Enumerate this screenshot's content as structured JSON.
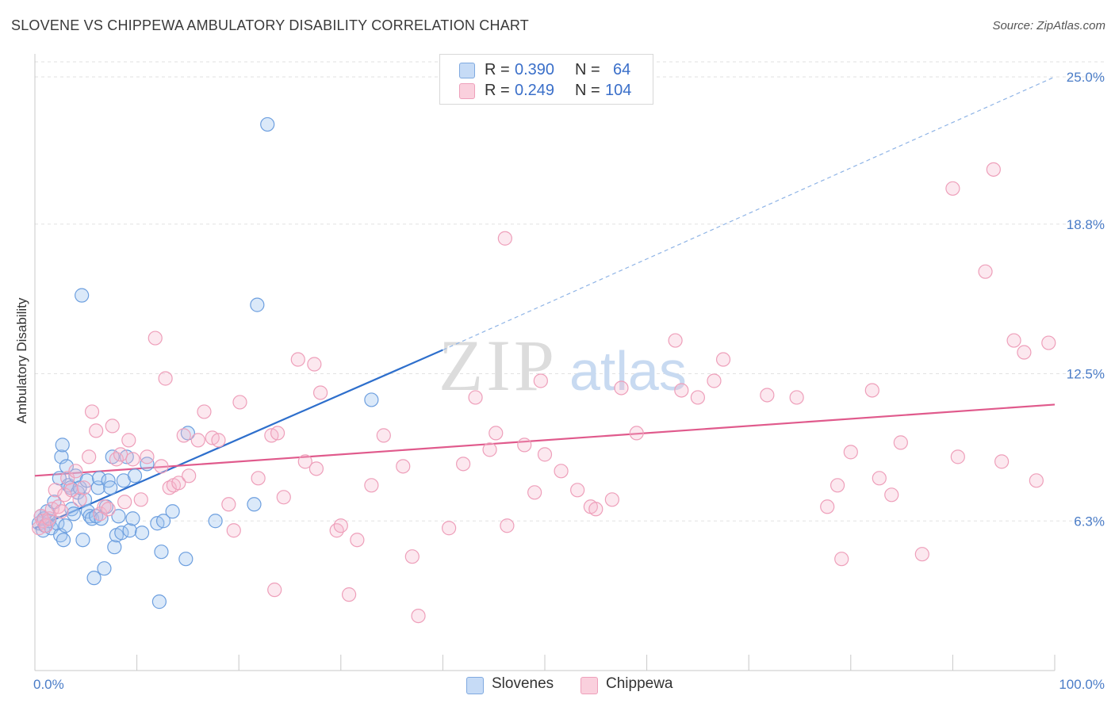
{
  "header": {
    "title": "SLOVENE VS CHIPPEWA AMBULATORY DISABILITY CORRELATION CHART",
    "source": "Source: ZipAtlas.com"
  },
  "watermark": {
    "zip": "ZIP",
    "atlas": "atlas"
  },
  "legend": {
    "r_label": "R =",
    "n_label": "N =",
    "rows": [
      {
        "r": "0.390",
        "n": "64"
      },
      {
        "r": "0.249",
        "n": "104"
      }
    ]
  },
  "chart_data": {
    "type": "scatter",
    "title": "SLOVENE VS CHIPPEWA AMBULATORY DISABILITY CORRELATION CHART",
    "xlabel": "",
    "ylabel": "Ambulatory Disability",
    "xlim": [
      0,
      100
    ],
    "ylim": [
      0,
      26
    ],
    "x_tick_labels": [
      "0.0%",
      "100.0%"
    ],
    "y_ticks": [
      6.3,
      12.5,
      18.8,
      25.0
    ],
    "y_tick_labels": [
      "6.3%",
      "12.5%",
      "18.8%",
      "25.0%"
    ],
    "grid": "horizontal-dashed",
    "legend_position": "bottom-center",
    "series": [
      {
        "name": "Slovenes",
        "color": "#8ab4e8",
        "line_color": "#2e6fcc",
        "trend": {
          "x": [
            0,
            40
          ],
          "y": [
            6.0,
            13.5
          ],
          "dashed_to": [
            100,
            25.0
          ]
        },
        "points": [
          [
            0.4,
            6.2
          ],
          [
            0.6,
            6.5
          ],
          [
            0.8,
            5.9
          ],
          [
            0.9,
            6.4
          ],
          [
            1.0,
            6.1
          ],
          [
            1.2,
            6.7
          ],
          [
            1.4,
            6.3
          ],
          [
            1.6,
            6.0
          ],
          [
            1.9,
            7.1
          ],
          [
            2.2,
            6.2
          ],
          [
            2.4,
            8.1
          ],
          [
            2.5,
            5.7
          ],
          [
            2.6,
            9.0
          ],
          [
            2.7,
            9.5
          ],
          [
            2.8,
            5.5
          ],
          [
            3.0,
            6.1
          ],
          [
            3.1,
            8.6
          ],
          [
            3.3,
            7.8
          ],
          [
            3.5,
            7.7
          ],
          [
            3.6,
            6.8
          ],
          [
            3.8,
            6.6
          ],
          [
            4.0,
            8.2
          ],
          [
            4.2,
            7.5
          ],
          [
            4.4,
            7.7
          ],
          [
            4.6,
            15.8
          ],
          [
            4.7,
            5.5
          ],
          [
            4.9,
            7.2
          ],
          [
            5.1,
            8.0
          ],
          [
            5.2,
            6.7
          ],
          [
            5.4,
            6.5
          ],
          [
            5.6,
            6.4
          ],
          [
            5.8,
            3.9
          ],
          [
            6.0,
            6.5
          ],
          [
            6.2,
            7.7
          ],
          [
            6.3,
            8.1
          ],
          [
            6.5,
            6.4
          ],
          [
            6.8,
            4.3
          ],
          [
            7.0,
            6.9
          ],
          [
            7.2,
            8.0
          ],
          [
            7.4,
            7.7
          ],
          [
            7.6,
            9.0
          ],
          [
            7.8,
            5.2
          ],
          [
            8.0,
            5.7
          ],
          [
            8.2,
            6.5
          ],
          [
            8.5,
            5.8
          ],
          [
            8.7,
            8.0
          ],
          [
            9.0,
            9.0
          ],
          [
            9.3,
            5.9
          ],
          [
            9.6,
            6.4
          ],
          [
            9.8,
            8.2
          ],
          [
            10.5,
            5.8
          ],
          [
            11.0,
            8.7
          ],
          [
            12.0,
            6.2
          ],
          [
            12.4,
            5.0
          ],
          [
            12.2,
            2.9
          ],
          [
            14.8,
            4.7
          ],
          [
            15.0,
            10.0
          ],
          [
            17.7,
            6.3
          ],
          [
            21.5,
            7.0
          ],
          [
            21.8,
            15.4
          ],
          [
            22.8,
            23.0
          ],
          [
            33.0,
            11.4
          ],
          [
            12.6,
            6.3
          ],
          [
            13.5,
            6.7
          ]
        ]
      },
      {
        "name": "Chippewa",
        "color": "#f4a9c0",
        "line_color": "#e05a8c",
        "trend": {
          "x": [
            0,
            100
          ],
          "y": [
            8.2,
            11.2
          ]
        },
        "points": [
          [
            0.4,
            6.0
          ],
          [
            0.6,
            6.5
          ],
          [
            0.8,
            6.3
          ],
          [
            1.1,
            6.1
          ],
          [
            1.4,
            6.4
          ],
          [
            1.7,
            6.8
          ],
          [
            2.0,
            7.6
          ],
          [
            2.3,
            6.9
          ],
          [
            2.6,
            6.7
          ],
          [
            2.9,
            7.4
          ],
          [
            3.2,
            8.1
          ],
          [
            3.6,
            7.6
          ],
          [
            4.0,
            8.4
          ],
          [
            4.4,
            7.2
          ],
          [
            4.8,
            7.7
          ],
          [
            5.3,
            9.0
          ],
          [
            5.6,
            10.9
          ],
          [
            6.0,
            10.1
          ],
          [
            6.4,
            6.6
          ],
          [
            6.8,
            6.9
          ],
          [
            7.2,
            6.8
          ],
          [
            7.6,
            10.3
          ],
          [
            8.0,
            8.9
          ],
          [
            8.4,
            9.1
          ],
          [
            8.8,
            7.1
          ],
          [
            9.2,
            9.7
          ],
          [
            9.6,
            8.9
          ],
          [
            10.4,
            7.2
          ],
          [
            11.0,
            9.0
          ],
          [
            11.8,
            14.0
          ],
          [
            12.4,
            8.6
          ],
          [
            12.8,
            12.3
          ],
          [
            13.2,
            7.7
          ],
          [
            13.6,
            7.8
          ],
          [
            14.1,
            7.9
          ],
          [
            14.6,
            9.9
          ],
          [
            15.1,
            8.2
          ],
          [
            16.0,
            9.7
          ],
          [
            16.6,
            10.9
          ],
          [
            17.4,
            9.8
          ],
          [
            18.0,
            9.7
          ],
          [
            19.0,
            7.0
          ],
          [
            19.5,
            5.9
          ],
          [
            20.1,
            11.3
          ],
          [
            21.9,
            8.1
          ],
          [
            23.2,
            9.9
          ],
          [
            23.5,
            3.4
          ],
          [
            23.8,
            10.0
          ],
          [
            24.4,
            7.3
          ],
          [
            25.8,
            13.1
          ],
          [
            26.5,
            8.8
          ],
          [
            27.4,
            12.9
          ],
          [
            27.6,
            8.5
          ],
          [
            28.0,
            11.7
          ],
          [
            29.6,
            5.9
          ],
          [
            30.0,
            6.1
          ],
          [
            30.8,
            3.2
          ],
          [
            31.6,
            5.5
          ],
          [
            33.0,
            7.8
          ],
          [
            34.2,
            9.9
          ],
          [
            36.1,
            8.6
          ],
          [
            37.0,
            4.8
          ],
          [
            37.6,
            2.3
          ],
          [
            40.6,
            6.0
          ],
          [
            42.0,
            8.7
          ],
          [
            43.2,
            11.5
          ],
          [
            44.6,
            9.3
          ],
          [
            45.2,
            10.0
          ],
          [
            46.1,
            18.2
          ],
          [
            46.3,
            6.1
          ],
          [
            48.0,
            9.5
          ],
          [
            49.0,
            7.5
          ],
          [
            49.6,
            12.2
          ],
          [
            50.0,
            9.1
          ],
          [
            51.6,
            8.4
          ],
          [
            53.2,
            7.6
          ],
          [
            54.5,
            6.9
          ],
          [
            55.0,
            6.8
          ],
          [
            56.6,
            7.2
          ],
          [
            57.5,
            11.9
          ],
          [
            59.0,
            10.0
          ],
          [
            62.8,
            13.9
          ],
          [
            63.4,
            11.8
          ],
          [
            65.0,
            11.5
          ],
          [
            66.6,
            12.2
          ],
          [
            67.5,
            13.1
          ],
          [
            71.8,
            11.6
          ],
          [
            74.7,
            11.5
          ],
          [
            77.7,
            6.9
          ],
          [
            78.7,
            7.8
          ],
          [
            79.1,
            4.7
          ],
          [
            80.0,
            9.2
          ],
          [
            82.1,
            11.8
          ],
          [
            82.8,
            8.1
          ],
          [
            84.0,
            7.4
          ],
          [
            84.9,
            9.6
          ],
          [
            87.0,
            4.9
          ],
          [
            90.0,
            20.3
          ],
          [
            90.5,
            9.0
          ],
          [
            93.2,
            16.8
          ],
          [
            94.0,
            21.1
          ],
          [
            94.8,
            8.8
          ],
          [
            96.0,
            13.9
          ],
          [
            97.0,
            13.4
          ],
          [
            98.2,
            8.0
          ],
          [
            99.4,
            13.8
          ]
        ]
      }
    ]
  }
}
